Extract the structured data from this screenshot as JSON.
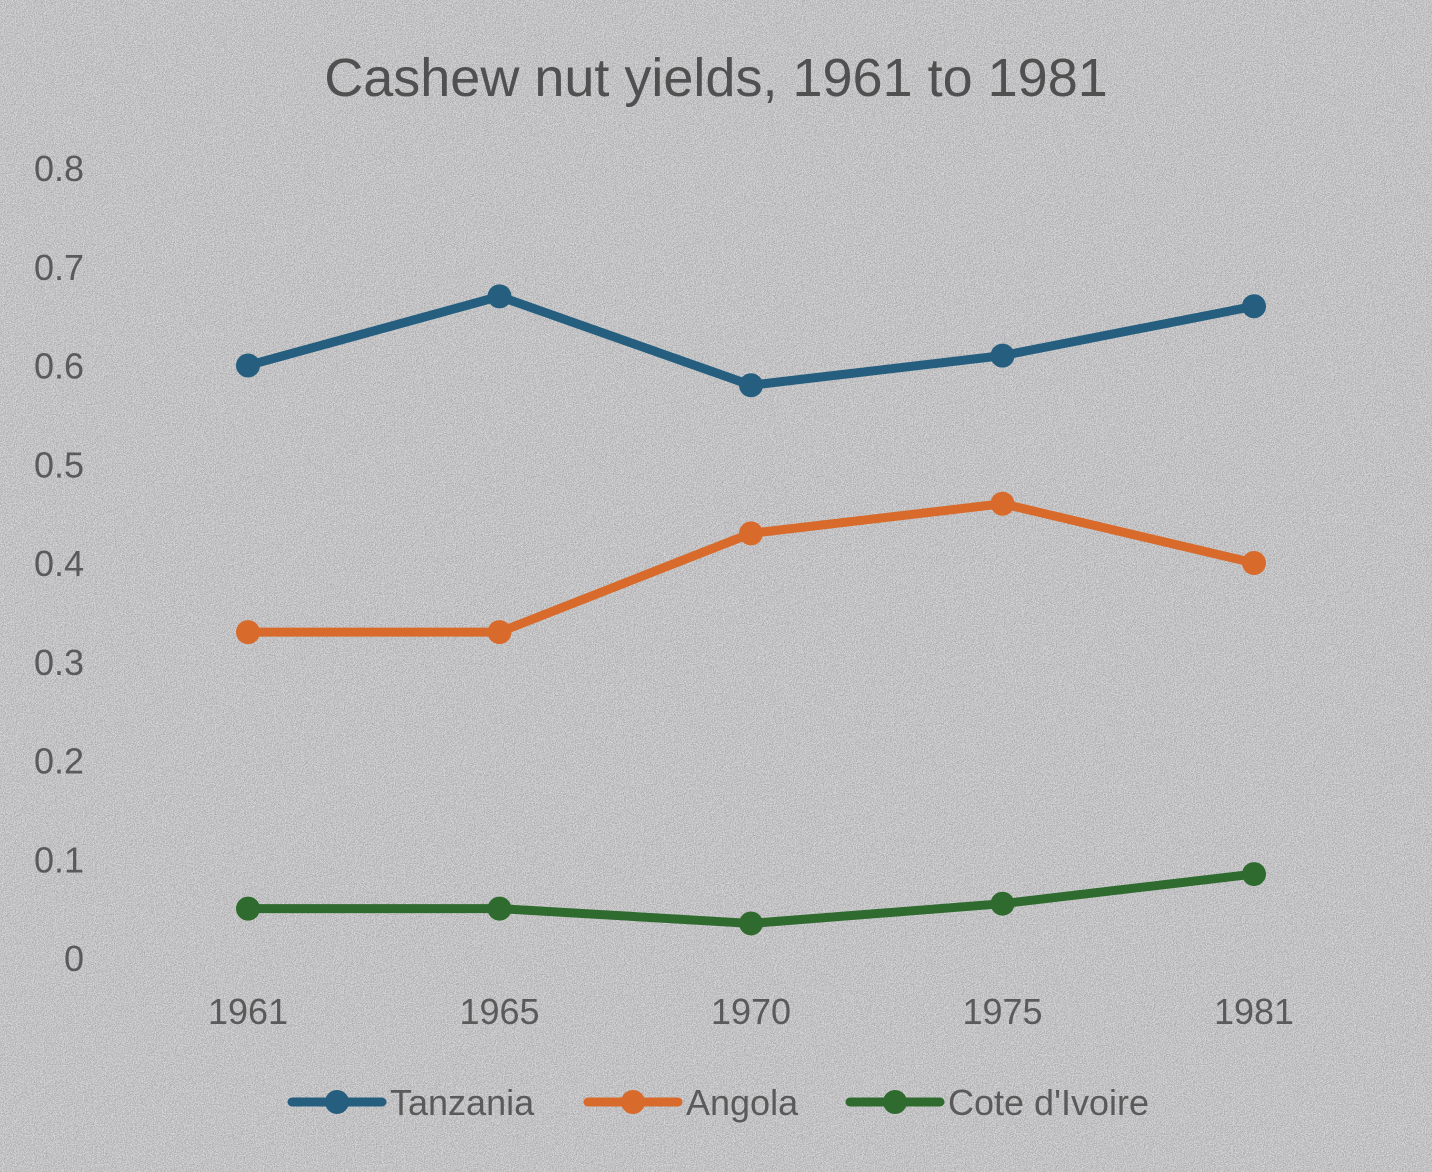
{
  "chart_data": {
    "type": "line",
    "title": "Cashew nut yields, 1961 to 1981",
    "xlabel": "",
    "ylabel": "",
    "categories": [
      "1961",
      "1965",
      "1970",
      "1975",
      "1981"
    ],
    "ylim": [
      0,
      0.8
    ],
    "yticks": [
      "0",
      "0.1",
      "0.2",
      "0.3",
      "0.4",
      "0.5",
      "0.6",
      "0.7",
      "0.8"
    ],
    "grid": false,
    "legend_position": "bottom",
    "series": [
      {
        "name": "Tanzania",
        "color": "#255e7e",
        "values": [
          0.6,
          0.67,
          0.58,
          0.61,
          0.66
        ]
      },
      {
        "name": "Angola",
        "color": "#d86a2c",
        "values": [
          0.33,
          0.33,
          0.43,
          0.46,
          0.4
        ]
      },
      {
        "name": "Cote d'Ivoire",
        "color": "#2f6a2f",
        "values": [
          0.05,
          0.05,
          0.035,
          0.055,
          0.085
        ]
      }
    ]
  }
}
